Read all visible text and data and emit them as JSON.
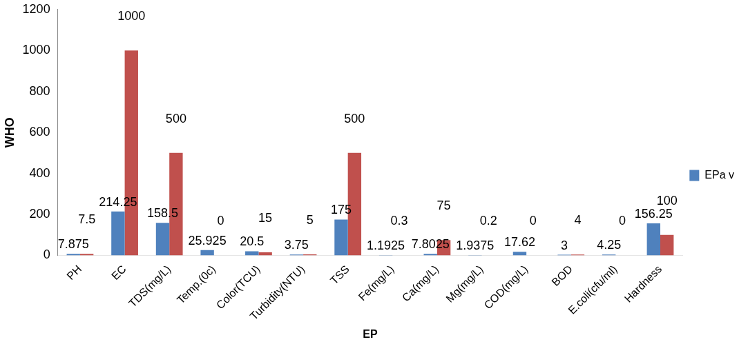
{
  "chart_data": {
    "type": "bar",
    "xlabel": "EP",
    "ylabel": "WHO",
    "categories": [
      "PH",
      "EC",
      "TDS(mg/L)",
      "Temp.(0c)",
      "Color(TCU)",
      "Turbidity(NTU)",
      "TSS",
      "Fe(mg/L)",
      "Ca(mg/L)",
      "Mg(mg/L)",
      "COD(mg/L)",
      "BOD",
      "E.coli(cfu/ml)",
      "Hardness"
    ],
    "series": [
      {
        "name": "EPa v",
        "color": "#4f81bd",
        "values": [
          7.875,
          214.25,
          158.5,
          25.925,
          20.5,
          3.75,
          175,
          1.1925,
          7.8025,
          1.9375,
          17.62,
          3,
          4.25,
          156.25
        ]
      },
      {
        "color": "#c0504d",
        "values": [
          7.5,
          1000,
          500,
          0,
          15,
          5,
          500,
          0.3,
          75,
          0.2,
          0,
          4,
          0,
          100
        ]
      }
    ],
    "ylim": [
      0,
      1200
    ],
    "yticks": [
      0,
      200,
      400,
      600,
      800,
      1000,
      1200
    ],
    "grid": false,
    "legend": "right",
    "data_labels": true
  }
}
